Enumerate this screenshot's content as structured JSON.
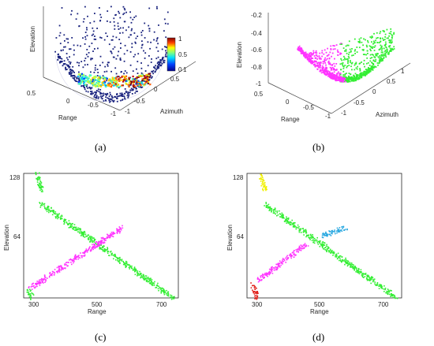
{
  "captions": [
    "(a)",
    "(b)",
    "(c)",
    "(d)"
  ],
  "colors": {
    "blue_points": "#1a237e",
    "magenta": "#ff33ff",
    "green": "#33ee33",
    "yellow": "#f0f000",
    "red": "#e0201a",
    "cyan": "#2aa8e0"
  },
  "chart_data": [
    {
      "type": "scatter",
      "panel": "a",
      "xlabel": "Range",
      "ylabel": "Azimuth",
      "zlabel": "Elevation",
      "xticks": [
        "0.5",
        "0",
        "-0.5",
        "-1"
      ],
      "yticks": [
        "-1",
        "-0.5",
        "0",
        "0.5",
        "1"
      ],
      "colorbar": {
        "ticks": [
          "1",
          "0.5",
          "0"
        ],
        "range": [
          0,
          1
        ],
        "colormap": "jet"
      }
    },
    {
      "type": "scatter",
      "panel": "b",
      "xlabel": "Range",
      "ylabel": "Azimuth",
      "zlabel": "Elevation",
      "zticks": [
        "-0.2",
        "-0.4",
        "-0.6",
        "-0.8",
        "-1"
      ],
      "xticks": [
        "0.5",
        "0",
        "-0.5",
        "-1"
      ],
      "yticks": [
        "-1",
        "-0.5",
        "0",
        "0.5",
        "1"
      ],
      "series": [
        {
          "color": "magenta"
        },
        {
          "color": "green"
        }
      ]
    },
    {
      "type": "scatter",
      "panel": "c",
      "xlabel": "Range",
      "ylabel": "Elevation",
      "xlim": [
        290,
        760
      ],
      "ylim": [
        0,
        128
      ],
      "xticks": [
        "300",
        "500",
        "700"
      ],
      "yticks": [
        "128",
        "64"
      ],
      "series": [
        {
          "color": "green",
          "segments": [
            [
              [
                330,
                128
              ],
              [
                345,
                110
              ]
            ],
            [
              [
                345,
                96
              ],
              [
                745,
                0
              ]
            ],
            [
              [
                305,
                8
              ],
              [
                315,
                0
              ]
            ]
          ]
        },
        {
          "color": "magenta",
          "segments": [
            [
              [
                310,
                10
              ],
              [
                590,
                72
              ]
            ]
          ]
        }
      ]
    },
    {
      "type": "scatter",
      "panel": "d",
      "xlabel": "Range",
      "ylabel": "Elevation",
      "xlim": [
        290,
        760
      ],
      "ylim": [
        0,
        128
      ],
      "xticks": [
        "300",
        "500",
        "700"
      ],
      "yticks": [
        "128",
        "64"
      ],
      "series": [
        {
          "color": "yellow",
          "segments": [
            [
              [
                330,
                128
              ],
              [
                345,
                110
              ]
            ]
          ]
        },
        {
          "color": "green",
          "segments": [
            [
              [
                345,
                96
              ],
              [
                745,
                0
              ]
            ]
          ]
        },
        {
          "color": "magenta",
          "segments": [
            [
              [
                325,
                18
              ],
              [
                470,
                55
              ]
            ]
          ]
        },
        {
          "color": "red",
          "segments": [
            [
              [
                308,
                14
              ],
              [
                322,
                0
              ]
            ]
          ]
        },
        {
          "color": "cyan",
          "segments": [
            [
              [
                520,
                64
              ],
              [
                590,
                72
              ]
            ]
          ]
        }
      ]
    }
  ]
}
